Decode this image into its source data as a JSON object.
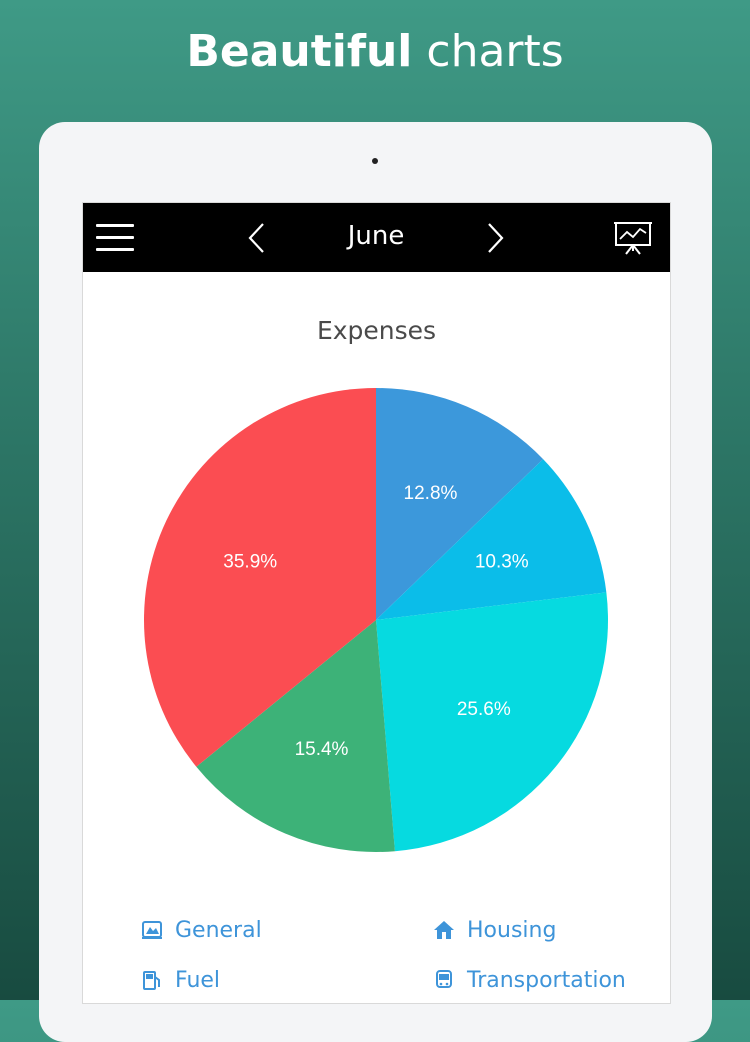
{
  "promo": {
    "headline_strong": "Beautiful",
    "headline_light": "charts"
  },
  "navbar": {
    "title": "June",
    "menu_icon": "hamburger-icon",
    "prev_icon": "chevron-left-icon",
    "next_icon": "chevron-right-icon",
    "presentation_icon": "presentation-chart-icon"
  },
  "chart_data": {
    "type": "pie",
    "title": "Expenses",
    "start_angle_deg": 0,
    "direction": "clockwise",
    "slices": [
      {
        "label": "12.8%",
        "value": 12.8,
        "color": "#3c98db"
      },
      {
        "label": "10.3%",
        "value": 10.3,
        "color": "#0bbde9"
      },
      {
        "label": "25.6%",
        "value": 25.6,
        "color": "#06dae0"
      },
      {
        "label": "15.4%",
        "value": 15.4,
        "color": "#3db278"
      },
      {
        "label": "35.9%",
        "value": 35.9,
        "color": "#fb4d52"
      }
    ]
  },
  "legend": {
    "items": [
      {
        "label": "General",
        "icon": "general-icon"
      },
      {
        "label": "Housing",
        "icon": "house-icon"
      },
      {
        "label": "Fuel",
        "icon": "fuel-icon"
      },
      {
        "label": "Transportation",
        "icon": "bus-icon"
      }
    ],
    "color": "#3e94d9"
  }
}
